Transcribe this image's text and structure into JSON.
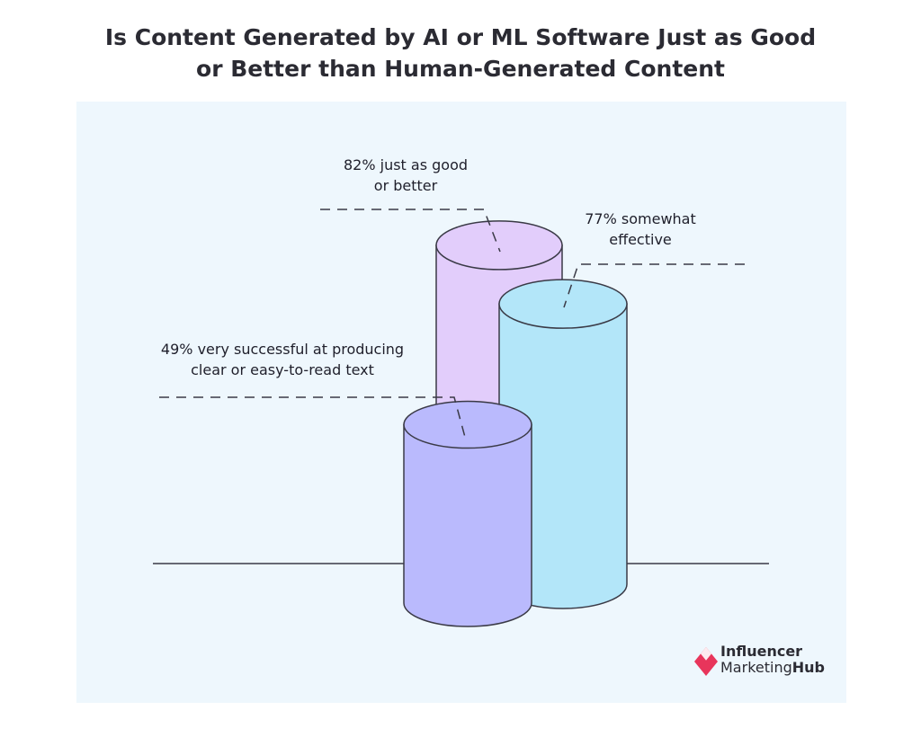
{
  "title": {
    "line1": "Is Content Generated by AI or ML Software Just as Good",
    "line2": "or Better than Human-Generated Content"
  },
  "chart_data": {
    "type": "bar",
    "style": "3d-cylinders",
    "categories": [
      "82% just as good or better",
      "77% somewhat effective",
      "49% very successful at producing clear or easy-to-read text"
    ],
    "values": [
      82,
      77,
      49
    ],
    "annotations": [
      {
        "line1": "82% just as good",
        "line2": "or better",
        "value": 82,
        "color": "#e2cdfb"
      },
      {
        "line1": "77% somewhat",
        "line2": "effective",
        "value": 77,
        "color": "#b3e6f9"
      },
      {
        "line1": "49% very successful at producing",
        "line2": "clear or easy-to-read text",
        "value": 49,
        "color": "#babafd"
      }
    ],
    "ylim": [
      0,
      100
    ],
    "grid": false,
    "legend": "none"
  },
  "logo": {
    "line1": "Influencer",
    "line2a": "Marketing",
    "line2b": "Hub",
    "accent": "#e8355b"
  },
  "colors": {
    "background": "#eef7fd",
    "outline": "#3a3a46"
  }
}
